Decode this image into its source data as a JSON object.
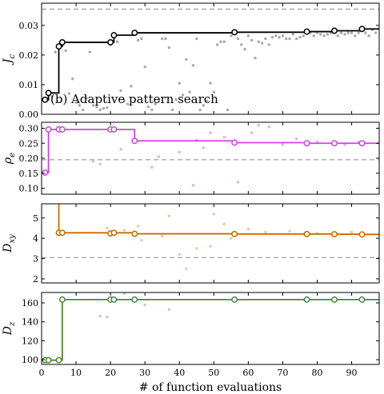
{
  "chart_data": {
    "xlabel": "# of function evaluations",
    "xlim": [
      0,
      98
    ],
    "xticks": [
      0,
      10,
      20,
      30,
      40,
      50,
      60,
      70,
      80,
      90
    ],
    "panels": [
      {
        "key": "Jc",
        "ylabel": "J_c",
        "ylim": [
          0,
          0.0375
        ],
        "yticks": [
          "0.00",
          "0.01",
          "0.02",
          "0.03"
        ],
        "ytick_values": [
          0,
          0.01,
          0.02,
          0.03
        ],
        "reference_line": 0.0355,
        "color": "#000000",
        "scatter_color": "#a9a9a9",
        "annotation": "(b) Adaptive pattern search",
        "best_x": [
          1,
          2,
          3,
          5,
          6,
          20,
          21,
          27,
          56,
          77,
          85,
          93,
          98
        ],
        "best_y": [
          0.0049,
          0.0072,
          0.0072,
          0.0229,
          0.0243,
          0.0243,
          0.0267,
          0.0275,
          0.0277,
          0.0279,
          0.0282,
          0.0288,
          0.0288
        ],
        "markers_x": [
          1,
          2,
          5,
          6,
          20,
          21,
          27,
          56,
          77,
          85,
          93
        ],
        "markers_y": [
          0.0049,
          0.0072,
          0.0229,
          0.0243,
          0.0243,
          0.0267,
          0.0275,
          0.0277,
          0.0279,
          0.0282,
          0.0288
        ],
        "trials_x": [
          3,
          4,
          7,
          8,
          9,
          10,
          11,
          12,
          13,
          14,
          15,
          16,
          17,
          18,
          19,
          22,
          23,
          24,
          25,
          26,
          28,
          29,
          30,
          31,
          32,
          33,
          34,
          35,
          36,
          37,
          38,
          39,
          40,
          41,
          42,
          43,
          44,
          45,
          46,
          47,
          48,
          49,
          50,
          51,
          52,
          53,
          54,
          55,
          57,
          58,
          59,
          60,
          61,
          62,
          63,
          64,
          65,
          66,
          67,
          68,
          69,
          70,
          71,
          72,
          73,
          74,
          75,
          76,
          78,
          79,
          80,
          81,
          82,
          83,
          84,
          86,
          87,
          88,
          89,
          90,
          91,
          92,
          94,
          95,
          96,
          97
        ],
        "trials_y": [
          0.006,
          0.021,
          0.0215,
          0.007,
          0.012,
          0.004,
          0.003,
          0.0015,
          0.0055,
          0.021,
          0.003,
          0.0025,
          0.0015,
          0.002,
          0.0022,
          0.0245,
          0.008,
          0.0045,
          0.0035,
          0.0095,
          0.025,
          0.0255,
          0.016,
          0.0025,
          0.0015,
          0.0035,
          0.0045,
          0.0255,
          0.0255,
          0.0225,
          0.0015,
          0.005,
          0.0105,
          0.0065,
          0.0185,
          0.0075,
          0.0165,
          0.0255,
          0.0015,
          0.003,
          0.0045,
          0.0105,
          0.0075,
          0.0235,
          0.0245,
          0.0245,
          0.0015,
          0.0265,
          0.0255,
          0.0235,
          0.022,
          0.0265,
          0.025,
          0.019,
          0.0245,
          0.024,
          0.0255,
          0.0235,
          0.026,
          0.0265,
          0.026,
          0.0265,
          0.0255,
          0.0255,
          0.027,
          0.0255,
          0.026,
          0.0265,
          0.0275,
          0.0265,
          0.0275,
          0.027,
          0.0265,
          0.027,
          0.0275,
          0.0265,
          0.0275,
          0.027,
          0.0275,
          0.0275,
          0.0265,
          0.0275,
          0.0275,
          0.0265,
          0.0285,
          0.0275
        ]
      },
      {
        "key": "rho",
        "ylabel": "ρ_e",
        "ylim": [
          0.08,
          0.32
        ],
        "yticks": [
          "0.10",
          "0.15",
          "0.20",
          "0.25",
          "0.30"
        ],
        "ytick_values": [
          0.1,
          0.15,
          0.2,
          0.25,
          0.3
        ],
        "reference_line": 0.195,
        "color": "#cc44dd",
        "scatter_color": "#ecaaf0",
        "best_x": [
          1,
          2,
          3,
          5,
          6,
          20,
          21,
          27,
          56,
          77,
          85,
          93,
          98
        ],
        "best_y": [
          0.152,
          0.296,
          0.296,
          0.296,
          0.296,
          0.296,
          0.296,
          0.258,
          0.252,
          0.25,
          0.25,
          0.25,
          0.255
        ],
        "markers_x": [
          1,
          2,
          5,
          6,
          20,
          21,
          27,
          56,
          77,
          85,
          93
        ],
        "markers_y": [
          0.152,
          0.296,
          0.296,
          0.296,
          0.296,
          0.296,
          0.258,
          0.252,
          0.25,
          0.25,
          0.25
        ],
        "trials_x": [
          15,
          17,
          23,
          32,
          34,
          40,
          44,
          45,
          47,
          49,
          53,
          57,
          61,
          63,
          66,
          70,
          74,
          80,
          88,
          92
        ],
        "trials_y": [
          0.19,
          0.18,
          0.23,
          0.17,
          0.205,
          0.22,
          0.11,
          0.26,
          0.235,
          0.285,
          0.27,
          0.12,
          0.285,
          0.31,
          0.305,
          0.245,
          0.265,
          0.255,
          0.245,
          0.255
        ]
      },
      {
        "key": "Dxy",
        "ylabel": "D_xy",
        "ylim": [
          1.8,
          5.7
        ],
        "yticks": [
          "2",
          "3",
          "4",
          "5"
        ],
        "ytick_values": [
          2,
          3,
          4,
          5
        ],
        "reference_line": 3.05,
        "color": "#cc6a00",
        "scatter_color": "#ecc89a",
        "best_x": [
          5,
          5,
          6,
          20,
          21,
          27,
          56,
          77,
          85,
          93,
          98
        ],
        "best_y": [
          5.7,
          4.27,
          4.27,
          4.24,
          4.27,
          4.22,
          4.21,
          4.21,
          4.2,
          4.19,
          4.19
        ],
        "markers_x": [
          5,
          6,
          20,
          21,
          27,
          56,
          77,
          85,
          93
        ],
        "markers_y": [
          4.27,
          4.27,
          4.24,
          4.27,
          4.22,
          4.21,
          4.21,
          4.2,
          4.19
        ],
        "trials_x": [
          19,
          24,
          28,
          29,
          35,
          37,
          40,
          42,
          45,
          49,
          50,
          53,
          55,
          60,
          65,
          72,
          80,
          90
        ],
        "trials_y": [
          4.5,
          4.4,
          4.6,
          3.9,
          4.1,
          5.1,
          3.2,
          2.5,
          3.5,
          3.6,
          5.2,
          4.7,
          4.0,
          4.45,
          4.3,
          4.35,
          4.25,
          4.3
        ]
      },
      {
        "key": "Dz",
        "ylabel": "D_z",
        "ylim": [
          95,
          171
        ],
        "yticks": [
          "100",
          "120",
          "140",
          "160"
        ],
        "ytick_values": [
          100,
          120,
          140,
          160
        ],
        "color": "#4a8a2c",
        "scatter_color": "#b5d3a6",
        "best_x": [
          1,
          2,
          3,
          5,
          6,
          20,
          21,
          27,
          56,
          77,
          85,
          93,
          98
        ],
        "best_y": [
          99.5,
          99.5,
          99.5,
          99.5,
          163.5,
          163.5,
          163.5,
          163.5,
          163.5,
          163.5,
          163.5,
          163.5,
          163.5
        ],
        "markers_x": [
          1,
          2,
          5,
          6,
          20,
          21,
          27,
          56,
          77,
          85,
          93
        ],
        "markers_y": [
          99.5,
          99.5,
          99.5,
          163.5,
          163.5,
          163.5,
          163.5,
          163.5,
          163.5,
          163.5,
          163.5
        ],
        "trials_x": [
          17,
          19,
          24,
          30,
          37
        ],
        "trials_y": [
          146,
          145,
          170,
          158,
          153
        ]
      }
    ]
  }
}
